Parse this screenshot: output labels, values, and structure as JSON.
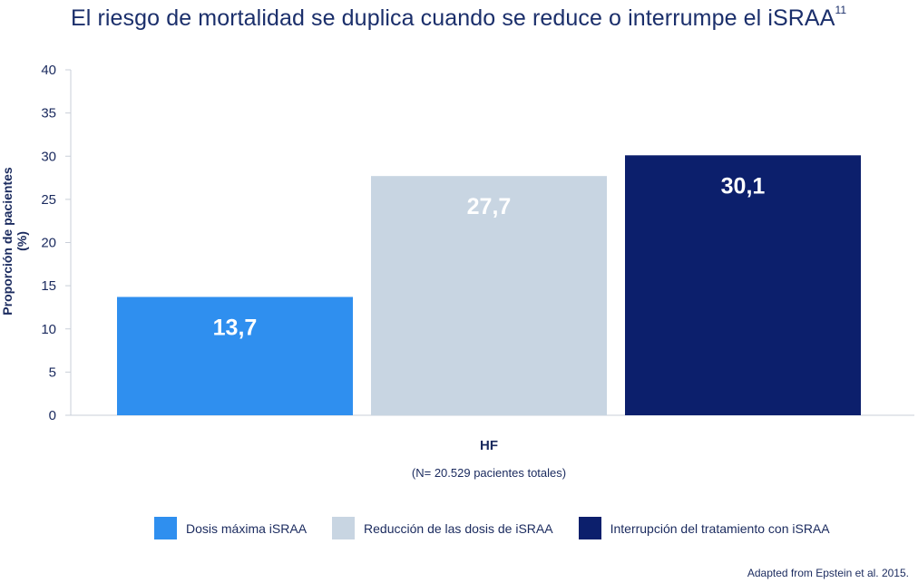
{
  "title": "El riesgo de mortalidad se duplica cuando se reduce o interrumpe el iSRAA",
  "title_superscript": "11",
  "source_note": "Adapted from Epstein et al. 2015.",
  "chart_data": {
    "type": "bar",
    "categories": [
      "HF"
    ],
    "category_note": "(N= 20.529 pacientes totales)",
    "ylabel": "Proporción de pacientes (%)",
    "xlabel": "",
    "ylim": [
      0,
      40
    ],
    "yticks": [
      0,
      5,
      10,
      15,
      20,
      25,
      30,
      35,
      40
    ],
    "grid": false,
    "legend_position": "bottom",
    "series": [
      {
        "name": "Dosis máxima iSRAA",
        "values": [
          13.7
        ],
        "label": "13,7",
        "color": "#2f8fef"
      },
      {
        "name": "Reducción de las dosis de iSRAA",
        "values": [
          27.7
        ],
        "label": "27,7",
        "color": "#c8d5e2"
      },
      {
        "name": "Interrupción del tratamiento con iSRAA",
        "values": [
          30.1
        ],
        "label": "30,1",
        "color": "#0c1f6c"
      }
    ]
  }
}
